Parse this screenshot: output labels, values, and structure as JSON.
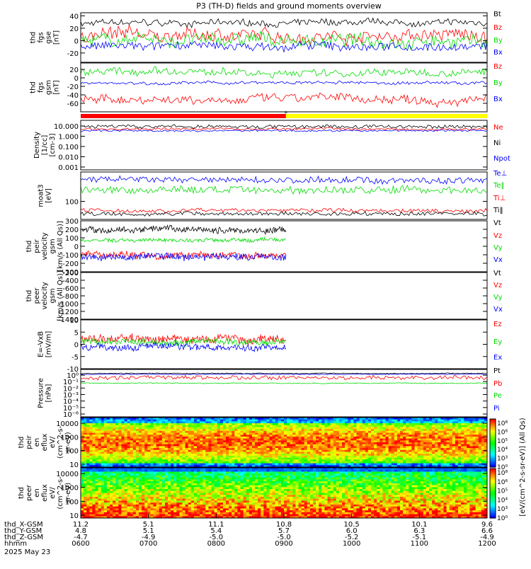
{
  "title": "P3 (TH-D) fields and ground moments overview",
  "colors": {
    "black": "#000000",
    "red": "#ff0000",
    "green": "#00dd00",
    "blue": "#0000ff",
    "yellow": "#ffff00"
  },
  "chart_data": [
    {
      "type": "line",
      "name": "fgs-gse",
      "ylabel": [
        "thd",
        "fgs",
        "gse",
        "[nT]"
      ],
      "ylim": [
        -35,
        45
      ],
      "ticks": [
        40,
        20,
        0,
        -20
      ],
      "series": [
        {
          "name": "Bt",
          "color": "#000000",
          "base": 28,
          "amp": 6
        },
        {
          "name": "Bz",
          "color": "#ff0000",
          "base": 8,
          "amp": 12
        },
        {
          "name": "By",
          "color": "#00dd00",
          "base": 0,
          "amp": 12
        },
        {
          "name": "Bx",
          "color": "#0000ff",
          "base": -10,
          "amp": 8
        }
      ]
    },
    {
      "type": "line",
      "name": "fgs-gsm",
      "ylabel": [
        "thd",
        "fgs",
        "gsm",
        "[nT]"
      ],
      "ylim": [
        -80,
        35
      ],
      "ticks": [
        20,
        0,
        -20,
        -40,
        -60
      ],
      "series": [
        {
          "name": "Bz",
          "color": "#ff0000",
          "base": -50,
          "amp": 12
        },
        {
          "name": "By",
          "color": "#00dd00",
          "base": 12,
          "amp": 10
        },
        {
          "name": "Bx",
          "color": "#0000ff",
          "base": -12,
          "amp": 4
        }
      ]
    },
    {
      "type": "line",
      "name": "density",
      "ylabel": [
        "Density",
        "[1/cc]",
        "[cm-3]"
      ],
      "scale": "log",
      "ylim": [
        0.001,
        30
      ],
      "ticks": [
        "10.000",
        "1.000",
        "0.100",
        "0.010",
        "0.001"
      ],
      "series": [
        {
          "name": "Ne",
          "color": "#ff0000",
          "base": 5,
          "amp": 0.1
        },
        {
          "name": "Ni",
          "color": "#000000",
          "base": 8,
          "amp": 0.15
        },
        {
          "name": "Npot",
          "color": "#0000ff",
          "base": 3.5,
          "amp": 0.08
        }
      ]
    },
    {
      "type": "line",
      "name": "temperature",
      "ylabel": [
        "moat3",
        "[eV]"
      ],
      "scale": "log",
      "ylim": [
        40,
        1500
      ],
      "ticks": [
        "100"
      ],
      "series": [
        {
          "name": "Te⊥",
          "color": "#0000ff",
          "base": 800,
          "amp": 0.1
        },
        {
          "name": "Te‖",
          "color": "#00dd00",
          "base": 380,
          "amp": 0.12
        },
        {
          "name": "Ti⊥",
          "color": "#ff0000",
          "base": 80,
          "amp": 0.06
        },
        {
          "name": "Ti‖",
          "color": "#000000",
          "base": 62,
          "amp": 0.06
        }
      ]
    },
    {
      "type": "line",
      "name": "peir-velocity",
      "ylabel": [
        "thd",
        "peir",
        "velocity",
        "gsm",
        "[km/s (All Qs)]"
      ],
      "ylim": [
        -300,
        300
      ],
      "ticks": [
        300,
        200,
        100,
        0,
        -100,
        -200,
        -300
      ],
      "series": [
        {
          "name": "Vt",
          "color": "#000000",
          "base": 190,
          "amp": 40
        },
        {
          "name": "Vz",
          "color": "#ff0000",
          "base": -100,
          "amp": 45
        },
        {
          "name": "Vy",
          "color": "#00dd00",
          "base": 70,
          "amp": 25
        },
        {
          "name": "Vx",
          "color": "#0000ff",
          "base": -120,
          "amp": 45
        }
      ]
    },
    {
      "type": "line",
      "name": "peer-velocity",
      "ylabel": [
        "thd",
        "peer",
        "velocity",
        "gsm",
        "[km/s (All Qs)]"
      ],
      "ylim": [
        -1400,
        -200
      ],
      "ticks": [
        -200,
        -400,
        -600,
        -800,
        -1000,
        -1200,
        -1400
      ],
      "series": [
        {
          "name": "Vt",
          "color": "#000000"
        },
        {
          "name": "Vz",
          "color": "#ff0000"
        },
        {
          "name": "Vy",
          "color": "#00dd00"
        },
        {
          "name": "Vx",
          "color": "#0000ff"
        }
      ]
    },
    {
      "type": "line",
      "name": "efield",
      "ylabel": [
        "E=-VxB",
        "[mV/m]"
      ],
      "ylim": [
        -10,
        10
      ],
      "ticks": [
        10,
        5,
        0,
        -5,
        -10
      ],
      "series": [
        {
          "name": "Ez",
          "color": "#ff0000",
          "base": 2,
          "amp": 2
        },
        {
          "name": "Ey",
          "color": "#00dd00",
          "base": 1,
          "amp": 1.5
        },
        {
          "name": "Ex",
          "color": "#0000ff",
          "base": -1,
          "amp": 1.5
        }
      ]
    },
    {
      "type": "line",
      "name": "pressure",
      "ylabel": [
        "Pressure",
        "[nPa]"
      ],
      "scale": "log",
      "ylim": [
        1e-06,
        2
      ],
      "ticks": [
        "10⁰",
        "10⁻¹",
        "10⁻²",
        "10⁻³",
        "10⁻⁴",
        "10⁻⁵",
        "10⁻⁶"
      ],
      "series": [
        {
          "name": "Pt",
          "color": "#000000",
          "base": 0.6,
          "amp": 0.05
        },
        {
          "name": "Pb",
          "color": "#ff0000",
          "base": 0.15,
          "amp": 0.25
        },
        {
          "name": "Pe",
          "color": "#00dd00",
          "base": 0.03,
          "amp": 0.05
        },
        {
          "name": "Pi",
          "color": "#0000ff",
          "base": 0.45,
          "amp": 0.05
        }
      ]
    },
    {
      "type": "heatmap",
      "name": "peir-spectrogram",
      "ylabel": [
        "thd",
        "peir",
        "en",
        "eflux",
        "eV/",
        "(cm^2-s-",
        "sr-eV)"
      ],
      "scale": "log",
      "ylim": [
        5,
        30000
      ],
      "ticks": [
        "10000",
        "1000",
        "100",
        "10"
      ]
    },
    {
      "type": "heatmap",
      "name": "peer-spectrogram",
      "ylabel": [
        "thd",
        "peer",
        "en",
        "eflux",
        "eV/",
        "(cm^2-s-",
        "sr-eV)"
      ],
      "scale": "log",
      "ylim": [
        5,
        30000
      ],
      "ticks": [
        "10000",
        "1000",
        "100",
        "10"
      ]
    }
  ],
  "colorbar": {
    "ticks": [
      "10⁸",
      "10⁶",
      "10⁵",
      "10⁴",
      "10³",
      "10⁰"
    ],
    "ticks2": [
      "10⁸",
      "10⁶",
      "10⁵",
      "10⁴",
      "10³",
      "10⁰"
    ],
    "label": "[eV/(cm^2-s-sr-eV)] (All Qs)"
  },
  "mode_bar": {
    "red_until": 0.505,
    "marker": "*"
  },
  "x_axis": {
    "rows": [
      {
        "label": "thd_X-GSM",
        "values": [
          "11.2",
          "5.1",
          "11.1",
          "10.8",
          "10.5",
          "10.1",
          "9.6"
        ]
      },
      {
        "label": "thd_Y-GSM",
        "values": [
          "4.8",
          "5.1",
          "5.4",
          "5.7",
          "6.0",
          "6.3",
          "6.6"
        ]
      },
      {
        "label": "thd_Z-GSM",
        "values": [
          "-4.7",
          "-4.9",
          "-5.0",
          "-5.0",
          "-5.2",
          "-5.1",
          "-4.9"
        ]
      },
      {
        "label": "hhmm",
        "values": [
          "0600",
          "0700",
          "0800",
          "0900",
          "1000",
          "1100",
          "1200"
        ]
      }
    ],
    "date": "2025 May 23"
  },
  "cutoff_fraction": 0.505
}
